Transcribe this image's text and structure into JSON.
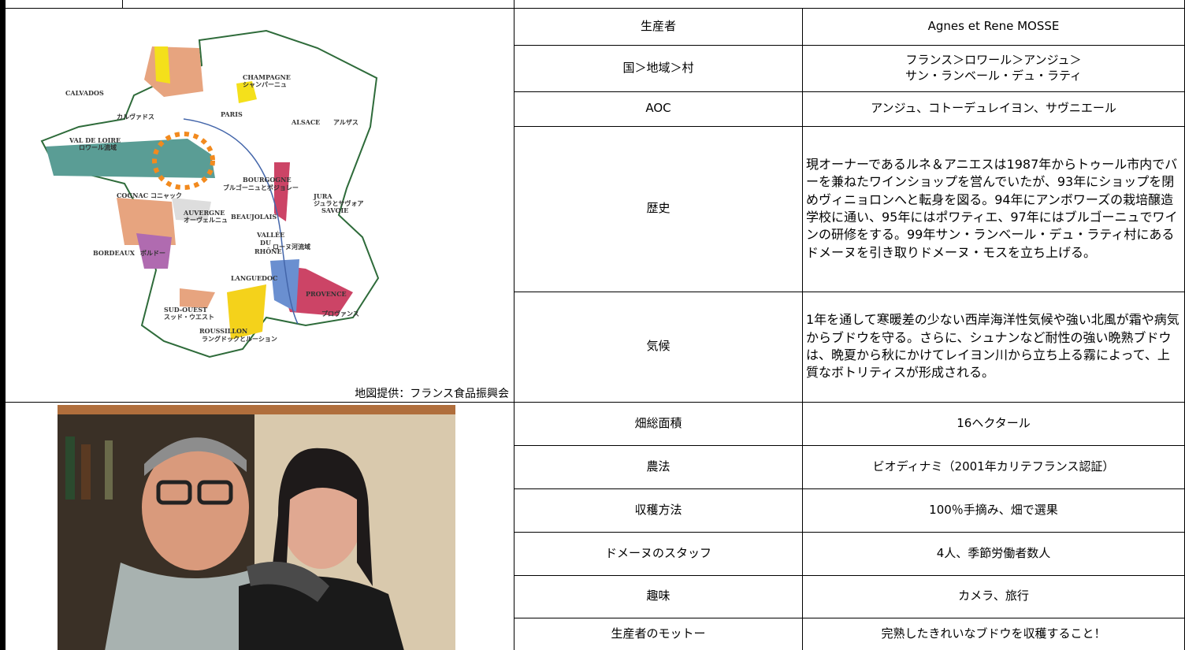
{
  "map": {
    "caption": "地図提供：フランス食品振興会",
    "labels": [
      "CHAMPAGNE",
      "シャンパーニュ",
      "CALVADOS",
      "カルヴァドス",
      "PARIS",
      "ALSACE",
      "アルザス",
      "VAL DE LOIRE",
      "ロワール流域",
      "BOURGOGNE",
      "ブルゴーニュとボジョレー",
      "JURA",
      "ジュラとサヴォア",
      "SAVOIE",
      "COGNAC",
      "コニャック",
      "AUVERGNE",
      "オーヴェルニュ",
      "BEAUJOLAIS",
      "VALLÉE",
      "DU",
      "RHÔNE",
      "ローヌ河流域",
      "BORDEAUX",
      "ボルドー",
      "LANGUEDOC",
      "PROVENCE",
      "プロヴァンス",
      "SUD-OUEST",
      "スッド・ウエスト",
      "ROUSSILLON",
      "ラングドックとルーション"
    ]
  },
  "table": {
    "rows": [
      [
        "生産者",
        "Agnes et Rene MOSSE"
      ],
      [
        "国＞地域＞村",
        "フランス＞ロワール＞アンジュ＞\nサン・ランベール・デュ・ラティ"
      ],
      [
        "AOC",
        "アンジュ、コトーデュレイヨン、サヴニエール"
      ],
      [
        "歴史",
        "現オーナーであるルネ＆アニエスは1987年からトゥール市内でバーを兼ねたワインショップを営んでいたが、93年にショップを閉めヴィニョロンへと転身を図る。94年にアンボワーズの栽培醸造学校に通い、95年にはポワティエ、97年にはブルゴーニュでワインの研修をする。99年サン・ランベール・デュ・ラティ村にあるドメーヌを引き取りドメーヌ・モスを立ち上げる。"
      ],
      [
        "気候",
        "1年を通して寒暖差の少ない西岸海洋性気候や強い北風が霜や病気からブドウを守る。さらに、シュナンなど耐性の強い晩熟ブドウは、晩夏から秋にかけてレイヨン川から立ち上る霧によって、上質なボトリティスが形成される。"
      ],
      [
        "畑総面積",
        "16ヘクタール"
      ],
      [
        "農法",
        "ビオディナミ（2001年カリテフランス認証）"
      ],
      [
        "収穫方法",
        "100％手摘み、畑で選果"
      ],
      [
        "ドメーヌのスタッフ",
        "4人、季節労働者数人"
      ],
      [
        "趣味",
        "カメラ、旅行"
      ],
      [
        "生産者のモットー",
        "完熟したきれいなブドウを収穫すること！"
      ]
    ]
  }
}
